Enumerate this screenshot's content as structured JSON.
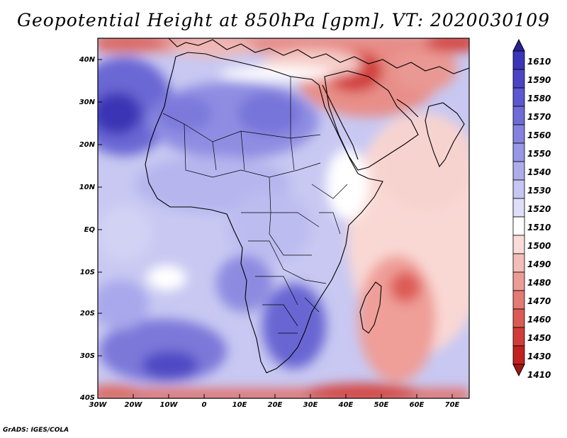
{
  "title": "Geopotential Height at 850hPa [gpm], VT: 2020030109",
  "credit": "GrADS: IGES/COLA",
  "map": {
    "lat_labels": [
      "40N",
      "30N",
      "20N",
      "10N",
      "EQ",
      "10S",
      "20S",
      "30S",
      "40S"
    ],
    "lat_values": [
      40,
      30,
      20,
      10,
      0,
      -10,
      -20,
      -30,
      -40
    ],
    "lon_labels": [
      "30W",
      "20W",
      "10W",
      "0",
      "10E",
      "20E",
      "30E",
      "40E",
      "50E",
      "60E",
      "70E"
    ],
    "lon_values": [
      -30,
      -20,
      -10,
      0,
      10,
      20,
      30,
      40,
      50,
      60,
      70
    ],
    "lon_range": [
      -30,
      75
    ],
    "lat_range": [
      -40,
      45
    ]
  },
  "colorbar": {
    "levels": [
      "1610",
      "1590",
      "1580",
      "1570",
      "1560",
      "1550",
      "1540",
      "1530",
      "1520",
      "1510",
      "1500",
      "1490",
      "1480",
      "1470",
      "1460",
      "1450",
      "1430",
      "1410"
    ],
    "colors": [
      "#2a1f9a",
      "#3b35b8",
      "#4b45c6",
      "#5c58cf",
      "#6f6cd7",
      "#8482de",
      "#9897e5",
      "#aeadeb",
      "#c6c6f2",
      "#dedef8",
      "#ffffff",
      "#f9dcd9",
      "#f3bdb8",
      "#ec9c96",
      "#e47a74",
      "#dc5a55",
      "#d23c38",
      "#c2221f",
      "#a61414"
    ]
  }
}
